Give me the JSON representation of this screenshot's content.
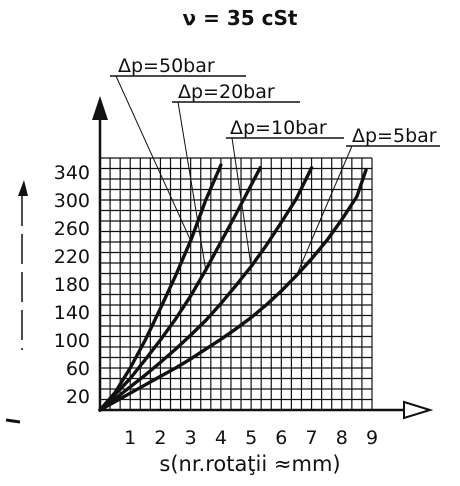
{
  "chart_data": {
    "type": "line",
    "title": "ν = 35 cSt",
    "xlabel": "s(nr.rotaţii ≈mm)",
    "ylabel": "",
    "xlim": [
      0,
      9
    ],
    "ylim": [
      0,
      360
    ],
    "x_ticks": [
      "1",
      "2",
      "3",
      "4",
      "5",
      "6",
      "7",
      "8",
      "9"
    ],
    "y_ticks": [
      "20",
      "60",
      "100",
      "140",
      "180",
      "220",
      "260",
      "300",
      "340"
    ],
    "grid": true,
    "series": [
      {
        "name": "Δp=50bar",
        "x": [
          0,
          0.5,
          1,
          1.5,
          2,
          2.5,
          3,
          3.5,
          4.0
        ],
        "y": [
          0,
          25,
          60,
          100,
          145,
          192,
          242,
          300,
          350
        ]
      },
      {
        "name": "Δp=20bar",
        "x": [
          0,
          0.5,
          1,
          1.5,
          2,
          2.5,
          3,
          3.5,
          4,
          4.5,
          5.3
        ],
        "y": [
          0,
          22,
          45,
          72,
          100,
          130,
          163,
          200,
          240,
          280,
          346
        ]
      },
      {
        "name": "Δp=10bar",
        "x": [
          0,
          0.5,
          1,
          1.5,
          2,
          2.5,
          3,
          3.5,
          4,
          4.5,
          5,
          5.5,
          6,
          6.5,
          7.0
        ],
        "y": [
          0,
          16,
          33,
          50,
          68,
          87,
          107,
          128,
          152,
          178,
          205,
          235,
          268,
          302,
          346
        ]
      },
      {
        "name": "Δp=5bar",
        "x": [
          0,
          0.5,
          1,
          1.5,
          2,
          2.5,
          3,
          3.5,
          4,
          4.5,
          5,
          5.5,
          6,
          6.5,
          7,
          7.5,
          8,
          8.5,
          8.8
        ],
        "y": [
          0,
          12,
          24,
          36,
          48,
          60,
          73,
          87,
          101,
          116,
          132,
          150,
          170,
          192,
          216,
          242,
          272,
          305,
          343
        ]
      }
    ],
    "legend_placement": "top, leader lines"
  }
}
